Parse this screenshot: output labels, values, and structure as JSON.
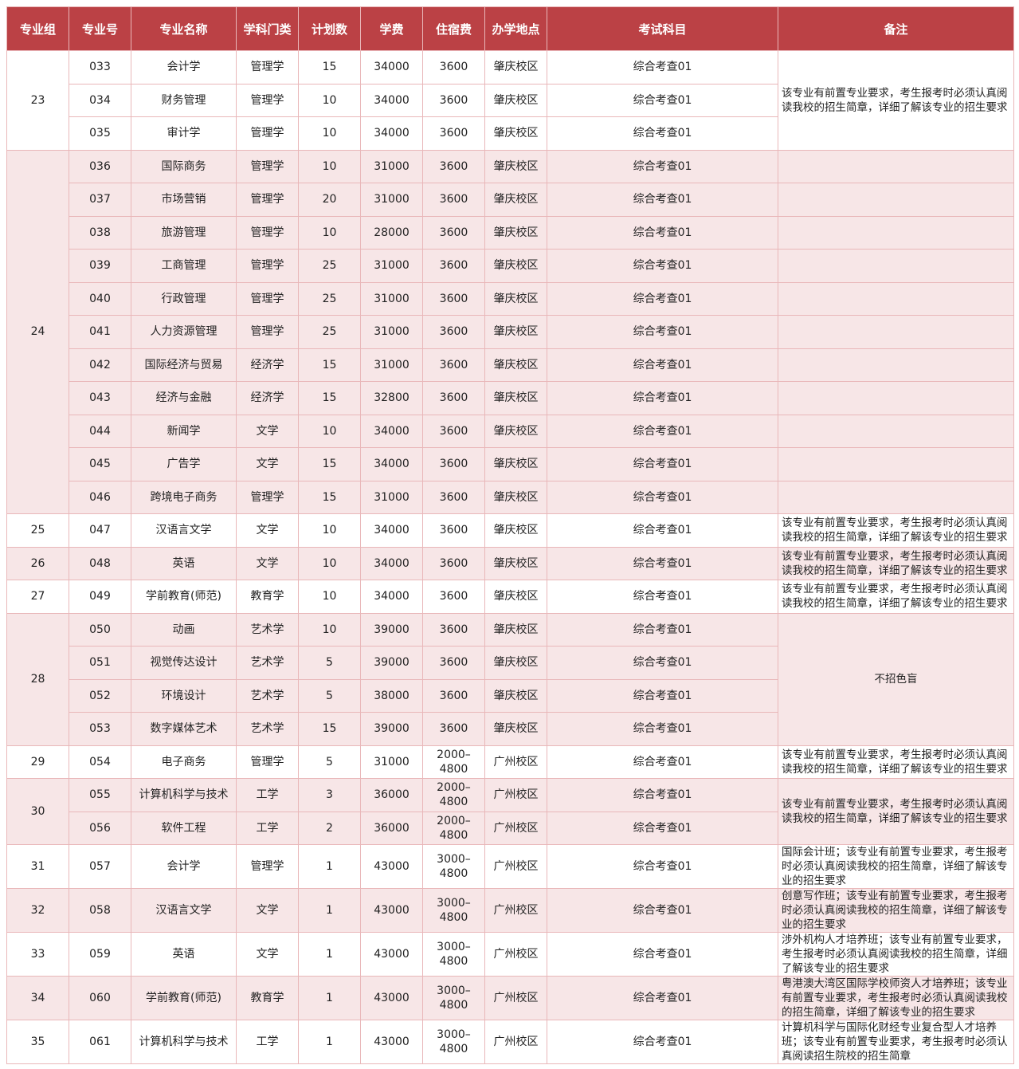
{
  "colors": {
    "header": "#bb4145",
    "border": "#e9b7b9",
    "stripe": "#f7e6e7"
  },
  "headers": [
    "专业组",
    "专业号",
    "专业名称",
    "学科门类",
    "计划数",
    "学费",
    "住宿费",
    "办学地点",
    "考试科目",
    "备注"
  ],
  "groups": [
    {
      "group": "23",
      "remark": "该专业有前置专业要求，考生报考时必须认真阅读我校的招生简章，详细了解该专业的招生要求",
      "per_row": false,
      "majors": [
        [
          "033",
          "会计学",
          "管理学",
          "15",
          "34000",
          "3600",
          "肇庆校区",
          "综合考查01"
        ],
        [
          "034",
          "财务管理",
          "管理学",
          "10",
          "34000",
          "3600",
          "肇庆校区",
          "综合考查01"
        ],
        [
          "035",
          "审计学",
          "管理学",
          "10",
          "34000",
          "3600",
          "肇庆校区",
          "综合考查01"
        ]
      ]
    },
    {
      "group": "24",
      "remark": "",
      "per_row": true,
      "majors": [
        [
          "036",
          "国际商务",
          "管理学",
          "10",
          "31000",
          "3600",
          "肇庆校区",
          "综合考查01"
        ],
        [
          "037",
          "市场营销",
          "管理学",
          "20",
          "31000",
          "3600",
          "肇庆校区",
          "综合考查01"
        ],
        [
          "038",
          "旅游管理",
          "管理学",
          "10",
          "28000",
          "3600",
          "肇庆校区",
          "综合考查01"
        ],
        [
          "039",
          "工商管理",
          "管理学",
          "25",
          "31000",
          "3600",
          "肇庆校区",
          "综合考查01"
        ],
        [
          "040",
          "行政管理",
          "管理学",
          "25",
          "31000",
          "3600",
          "肇庆校区",
          "综合考查01"
        ],
        [
          "041",
          "人力资源管理",
          "管理学",
          "25",
          "31000",
          "3600",
          "肇庆校区",
          "综合考查01"
        ],
        [
          "042",
          "国际经济与贸易",
          "经济学",
          "15",
          "31000",
          "3600",
          "肇庆校区",
          "综合考查01"
        ],
        [
          "043",
          "经济与金融",
          "经济学",
          "15",
          "32800",
          "3600",
          "肇庆校区",
          "综合考查01"
        ],
        [
          "044",
          "新闻学",
          "文学",
          "10",
          "34000",
          "3600",
          "肇庆校区",
          "综合考查01"
        ],
        [
          "045",
          "广告学",
          "文学",
          "15",
          "34000",
          "3600",
          "肇庆校区",
          "综合考查01"
        ],
        [
          "046",
          "跨境电子商务",
          "管理学",
          "15",
          "31000",
          "3600",
          "肇庆校区",
          "综合考查01"
        ]
      ]
    },
    {
      "group": "25",
      "remark": "该专业有前置专业要求，考生报考时必须认真阅读我校的招生简章，详细了解该专业的招生要求",
      "per_row": false,
      "majors": [
        [
          "047",
          "汉语言文学",
          "文学",
          "10",
          "34000",
          "3600",
          "肇庆校区",
          "综合考查01"
        ]
      ]
    },
    {
      "group": "26",
      "remark": "该专业有前置专业要求，考生报考时必须认真阅读我校的招生简章，详细了解该专业的招生要求",
      "per_row": false,
      "majors": [
        [
          "048",
          "英语",
          "文学",
          "10",
          "34000",
          "3600",
          "肇庆校区",
          "综合考查01"
        ]
      ]
    },
    {
      "group": "27",
      "remark": "该专业有前置专业要求，考生报考时必须认真阅读我校的招生简章，详细了解该专业的招生要求",
      "per_row": false,
      "majors": [
        [
          "049",
          "学前教育(师范)",
          "教育学",
          "10",
          "34000",
          "3600",
          "肇庆校区",
          "综合考查01"
        ]
      ]
    },
    {
      "group": "28",
      "remark": "不招色盲",
      "per_row": false,
      "center": true,
      "majors": [
        [
          "050",
          "动画",
          "艺术学",
          "10",
          "39000",
          "3600",
          "肇庆校区",
          "综合考查01"
        ],
        [
          "051",
          "视觉传达设计",
          "艺术学",
          "5",
          "39000",
          "3600",
          "肇庆校区",
          "综合考查01"
        ],
        [
          "052",
          "环境设计",
          "艺术学",
          "5",
          "38000",
          "3600",
          "肇庆校区",
          "综合考查01"
        ],
        [
          "053",
          "数字媒体艺术",
          "艺术学",
          "15",
          "39000",
          "3600",
          "肇庆校区",
          "综合考查01"
        ]
      ]
    },
    {
      "group": "29",
      "remark": "该专业有前置专业要求，考生报考时必须认真阅读我校的招生简章，详细了解该专业的招生要求",
      "per_row": false,
      "majors": [
        [
          "054",
          "电子商务",
          "管理学",
          "5",
          "31000",
          "2000–4800",
          "广州校区",
          "综合考查01"
        ]
      ]
    },
    {
      "group": "30",
      "remark": "该专业有前置专业要求，考生报考时必须认真阅读我校的招生简章，详细了解该专业的招生要求",
      "per_row": false,
      "majors": [
        [
          "055",
          "计算机科学与技术",
          "工学",
          "3",
          "36000",
          "2000–4800",
          "广州校区",
          "综合考查01"
        ],
        [
          "056",
          "软件工程",
          "工学",
          "2",
          "36000",
          "2000–4800",
          "广州校区",
          "综合考查01"
        ]
      ]
    },
    {
      "group": "31",
      "remark": "国际会计班；该专业有前置专业要求，考生报考时必须认真阅读我校的招生简章，详细了解该专业的招生要求",
      "per_row": false,
      "tall": true,
      "majors": [
        [
          "057",
          "会计学",
          "管理学",
          "1",
          "43000",
          "3000–4800",
          "广州校区",
          "综合考查01"
        ]
      ]
    },
    {
      "group": "32",
      "remark": "创意写作班；该专业有前置专业要求，考生报考时必须认真阅读我校的招生简章，详细了解该专业的招生要求",
      "per_row": false,
      "tall": true,
      "majors": [
        [
          "058",
          "汉语言文学",
          "文学",
          "1",
          "43000",
          "3000–4800",
          "广州校区",
          "综合考查01"
        ]
      ]
    },
    {
      "group": "33",
      "remark": "涉外机构人才培养班；该专业有前置专业要求，考生报考时必须认真阅读我校的招生简章，详细了解该专业的招生要求",
      "per_row": false,
      "tall": true,
      "majors": [
        [
          "059",
          "英语",
          "文学",
          "1",
          "43000",
          "3000–4800",
          "广州校区",
          "综合考查01"
        ]
      ]
    },
    {
      "group": "34",
      "remark": "粤港澳大湾区国际学校师资人才培养班；该专业有前置专业要求，考生报考时必须认真阅读我校的招生简章，详细了解该专业的招生要求",
      "per_row": false,
      "tall": true,
      "majors": [
        [
          "060",
          "学前教育(师范)",
          "教育学",
          "1",
          "43000",
          "3000–4800",
          "广州校区",
          "综合考查01"
        ]
      ]
    },
    {
      "group": "35",
      "remark": "计算机科学与国际化财经专业复合型人才培养班；该专业有前置专业要求，考生报考时必须认真阅读招生院校的招生简章",
      "per_row": false,
      "tall": true,
      "majors": [
        [
          "061",
          "计算机科学与技术",
          "工学",
          "1",
          "43000",
          "3000–4800",
          "广州校区",
          "综合考查01"
        ]
      ]
    }
  ]
}
